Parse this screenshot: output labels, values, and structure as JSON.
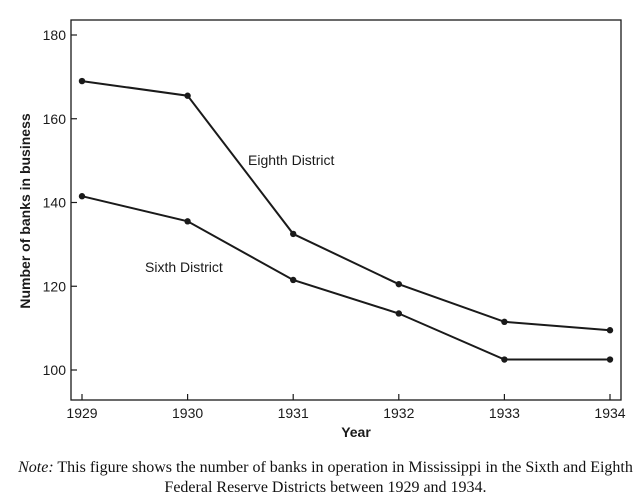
{
  "chart_data": {
    "type": "line",
    "xlabel": "Year",
    "ylabel": "Number of banks in business",
    "x": [
      1929,
      1930,
      1931,
      1932,
      1933,
      1934
    ],
    "xlim": [
      1929,
      1934
    ],
    "ylim": [
      100,
      180
    ],
    "yticks": [
      100,
      120,
      140,
      160,
      180
    ],
    "xticks": [
      1929,
      1930,
      1931,
      1932,
      1933,
      1934
    ],
    "grid": false,
    "series": [
      {
        "name": "Eighth District",
        "values": [
          169,
          165.5,
          132.5,
          120.5,
          111.5,
          109.5
        ]
      },
      {
        "name": "Sixth District",
        "values": [
          141.5,
          135.5,
          121.5,
          113.5,
          102.5,
          102.5
        ]
      }
    ]
  },
  "note": {
    "lead": "Note:",
    "text": " This figure shows the number of banks in operation in Mississippi in the Sixth and Eighth Federal Reserve Districts between 1929 and 1934."
  }
}
